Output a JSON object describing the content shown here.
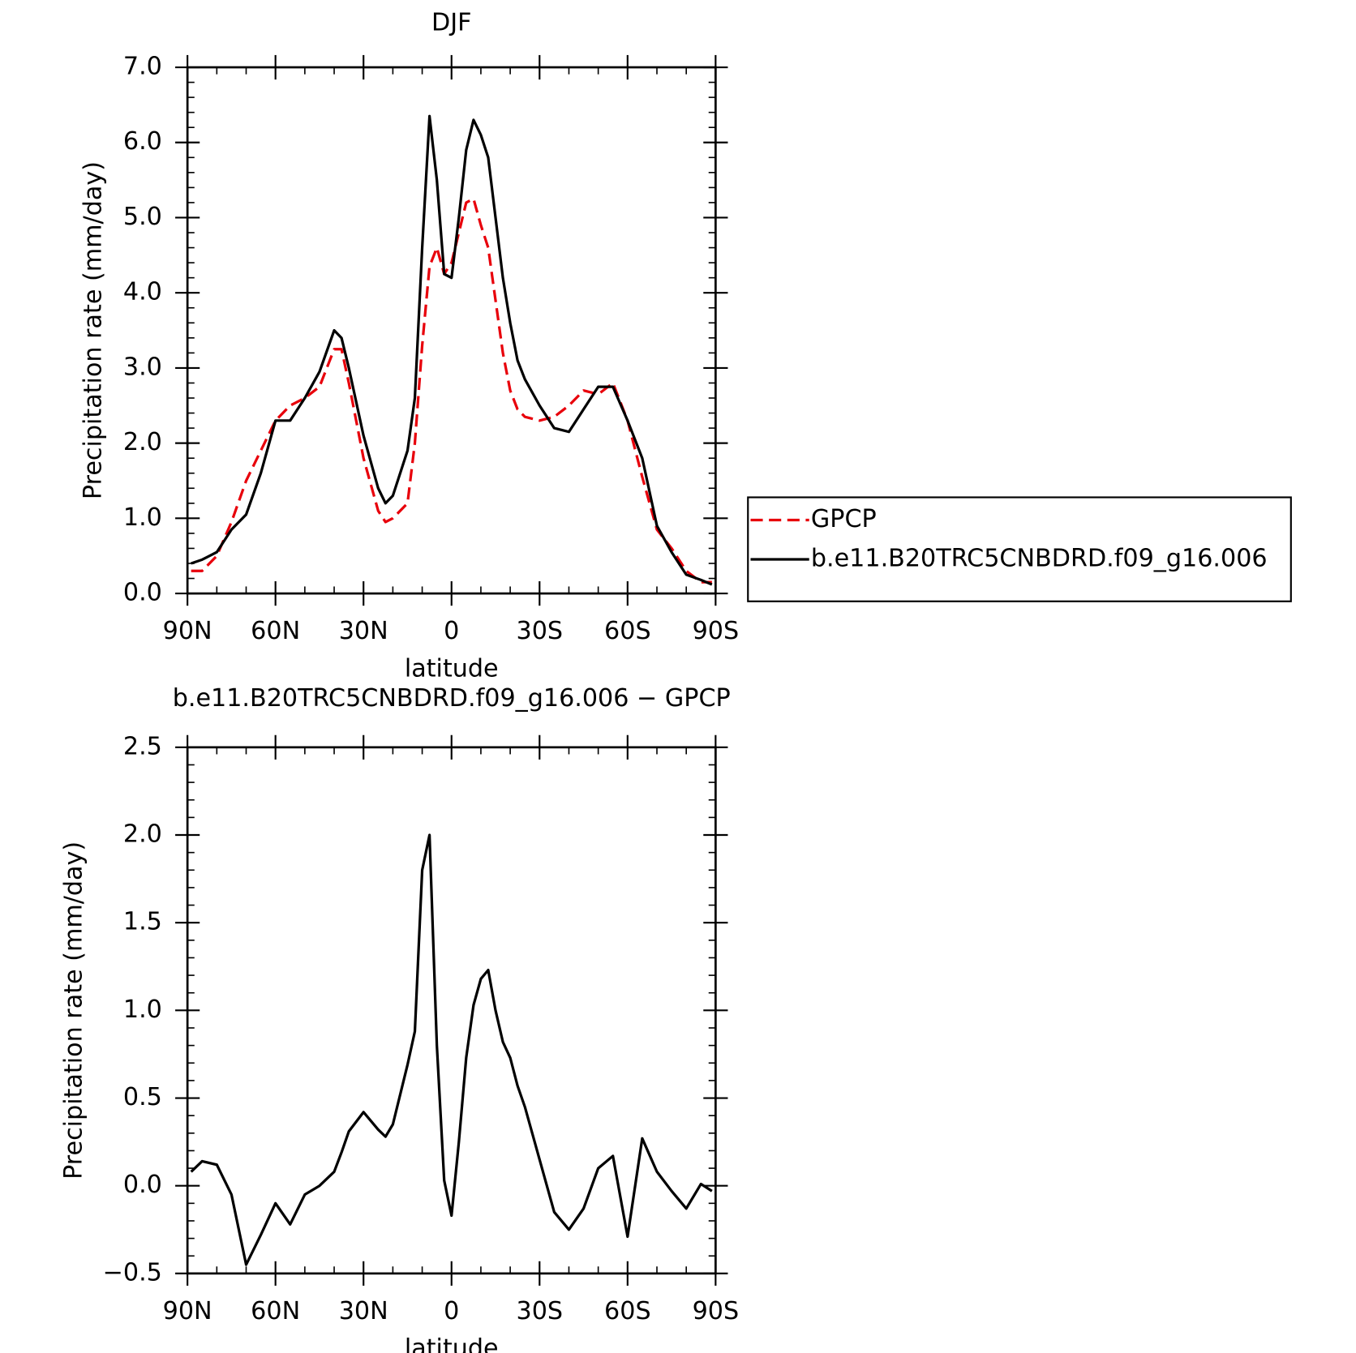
{
  "chart_data": [
    {
      "type": "line",
      "title": "DJF",
      "x_label": "latitude",
      "y_label": "Precipitation rate (mm/day)",
      "x": [
        88.75,
        85,
        80,
        75,
        70,
        65,
        60,
        55,
        50,
        45,
        40,
        37.5,
        35,
        30,
        25,
        22.5,
        20,
        15,
        12.5,
        10,
        7.5,
        5,
        2.5,
        0,
        -2.5,
        -5,
        -7.5,
        -10,
        -12.5,
        -15,
        -17.5,
        -20,
        -22.5,
        -25,
        -30,
        -35,
        -40,
        -45,
        -50,
        -55,
        -60,
        -65,
        -70,
        -75,
        -80,
        -85,
        -88.75
      ],
      "series": [
        {
          "name": "GPCP",
          "color": "#e8000b",
          "line_style": "dashed",
          "values": [
            0.3,
            0.3,
            0.5,
            0.95,
            1.5,
            1.9,
            2.3,
            2.5,
            2.6,
            2.75,
            3.25,
            3.25,
            2.8,
            1.8,
            1.1,
            0.95,
            1.0,
            1.2,
            2.0,
            3.3,
            4.35,
            4.6,
            4.25,
            4.4,
            4.8,
            5.2,
            5.25,
            4.9,
            4.6,
            3.9,
            3.2,
            2.7,
            2.45,
            2.35,
            2.3,
            2.35,
            2.5,
            2.7,
            2.65,
            2.8,
            2.3,
            1.55,
            0.85,
            0.6,
            0.3,
            0.15,
            0.15
          ]
        },
        {
          "name": "b.e11.B20TRC5CNBDRD.f09_g16.006",
          "color": "#000000",
          "line_style": "solid",
          "values": [
            0.4,
            0.45,
            0.55,
            0.85,
            1.05,
            1.6,
            2.3,
            2.3,
            2.6,
            2.95,
            3.5,
            3.4,
            3.0,
            2.1,
            1.4,
            1.2,
            1.3,
            1.9,
            2.6,
            4.6,
            6.35,
            5.5,
            4.25,
            4.2,
            5.0,
            5.9,
            6.3,
            6.1,
            5.8,
            5.0,
            4.2,
            3.6,
            3.1,
            2.85,
            2.5,
            2.2,
            2.15,
            2.45,
            2.75,
            2.75,
            2.3,
            1.8,
            0.9,
            0.55,
            0.25,
            0.18,
            0.12
          ]
        }
      ],
      "xlim": [
        90,
        -90
      ],
      "xticks": [
        {
          "value": 90,
          "label": "90N"
        },
        {
          "value": 60,
          "label": "60N"
        },
        {
          "value": 30,
          "label": "30N"
        },
        0,
        {
          "value": -30,
          "label": "30S"
        },
        {
          "value": -60,
          "label": "60S"
        },
        {
          "value": -90,
          "label": "90S"
        }
      ],
      "ylim": [
        0,
        7
      ],
      "yticks": [
        {
          "value": 0,
          "label": "0.0"
        },
        {
          "value": 1,
          "label": "1.0"
        },
        {
          "value": 2,
          "label": "2.0"
        },
        {
          "value": 3,
          "label": "3.0"
        },
        {
          "value": 4,
          "label": "4.0"
        },
        {
          "value": 5,
          "label": "5.0"
        },
        {
          "value": 6,
          "label": "6.0"
        },
        {
          "value": 7,
          "label": "7.0"
        }
      ],
      "legend": "right"
    },
    {
      "type": "line",
      "title": "b.e11.B20TRC5CNBDRD.f09_g16.006 − GPCP",
      "x_label": "latitude",
      "y_label": "Precipitation rate (mm/day)",
      "x": [
        88.75,
        85,
        80,
        75,
        70,
        65,
        60,
        55,
        50,
        45,
        40,
        37.5,
        35,
        30,
        25,
        22.5,
        20,
        15,
        12.5,
        10,
        7.5,
        5,
        2.5,
        0,
        -2.5,
        -5,
        -7.5,
        -10,
        -12.5,
        -15,
        -17.5,
        -20,
        -22.5,
        -25,
        -30,
        -35,
        -40,
        -45,
        -50,
        -55,
        -60,
        -65,
        -70,
        -75,
        -80,
        -85,
        -88.75
      ],
      "values": [
        0.08,
        0.14,
        0.12,
        -0.05,
        -0.45,
        -0.28,
        -0.1,
        -0.22,
        -0.05,
        0.0,
        0.08,
        0.19,
        0.31,
        0.42,
        0.32,
        0.28,
        0.35,
        0.69,
        0.88,
        1.8,
        2.0,
        0.8,
        0.03,
        -0.17,
        0.25,
        0.73,
        1.03,
        1.18,
        1.23,
        1.0,
        0.82,
        0.73,
        0.57,
        0.45,
        0.15,
        -0.15,
        -0.25,
        -0.13,
        0.1,
        0.17,
        -0.29,
        0.27,
        0.08,
        -0.03,
        -0.13,
        0.01,
        -0.03
      ],
      "color": "#000000",
      "xlim": [
        90,
        -90
      ],
      "xticks": [
        {
          "value": 90,
          "label": "90N"
        },
        {
          "value": 60,
          "label": "60N"
        },
        {
          "value": 30,
          "label": "30N"
        },
        0,
        {
          "value": -30,
          "label": "30S"
        },
        {
          "value": -60,
          "label": "60S"
        },
        {
          "value": -90,
          "label": "90S"
        }
      ],
      "ylim": [
        -0.5,
        2.5
      ],
      "yticks": [
        {
          "value": -0.5,
          "label": "−0.5"
        },
        {
          "value": 0,
          "label": "0.0"
        },
        {
          "value": 0.5,
          "label": "0.5"
        },
        {
          "value": 1,
          "label": "1.0"
        },
        {
          "value": 1.5,
          "label": "1.5"
        },
        {
          "value": 2,
          "label": "2.0"
        },
        {
          "value": 2.5,
          "label": "2.5"
        }
      ]
    }
  ]
}
